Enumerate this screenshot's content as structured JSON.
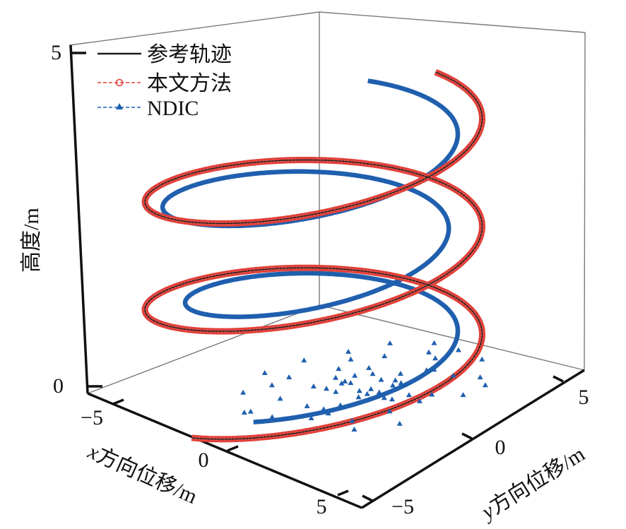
{
  "chart_data": {
    "type": "line",
    "subtype": "3d-helix",
    "title": "",
    "axes": {
      "x": {
        "label_var": "x",
        "label_text": "方向位移/m",
        "ticks": [
          -5,
          0,
          5
        ],
        "range": [
          -5.5,
          5.5
        ]
      },
      "y": {
        "label_var": "y",
        "label_text": "方向位移/m",
        "ticks": [
          -5,
          0,
          5
        ],
        "range": [
          -5.5,
          5.5
        ]
      },
      "z": {
        "label": "高度/m",
        "ticks": [
          0,
          5
        ],
        "range": [
          0,
          5
        ]
      }
    },
    "tick_labels": {
      "z": [
        "0",
        "5"
      ],
      "x": [
        "−5",
        "0",
        "5"
      ],
      "y": [
        "−5",
        "0",
        "5"
      ]
    },
    "legend": {
      "placement": "top-left",
      "entries": [
        {
          "name": "参考轨迹",
          "color": "#1a1a1a",
          "style": "solid"
        },
        {
          "name": "本文方法",
          "color": "#e0413a",
          "style": "dashed-circle"
        },
        {
          "name": "NDIC",
          "color": "#1f5fae",
          "style": "dashed-triangle"
        }
      ]
    },
    "series": [
      {
        "name": "参考轨迹",
        "shape": "helix",
        "radius": 5,
        "turns": 2.5,
        "z_range": [
          0,
          4.6
        ]
      },
      {
        "name": "本文方法",
        "shape": "helix",
        "radius": 5,
        "turns": 2.5,
        "z_range": [
          0,
          4.6
        ]
      },
      {
        "name": "NDIC",
        "shape": "helix-offset",
        "radius": 4.5,
        "turns": 2.5,
        "z_range": [
          0.3,
          4.5
        ]
      }
    ],
    "grid": false,
    "colors": {
      "reference": "#1a1a1a",
      "proposed": "#e0413a",
      "ndic": "#1f5fae"
    }
  }
}
